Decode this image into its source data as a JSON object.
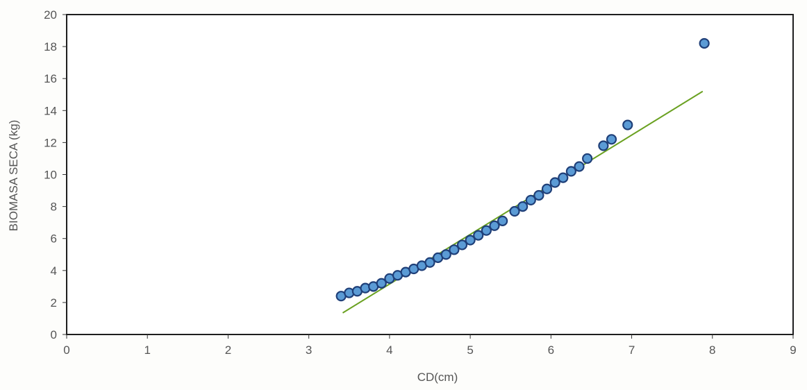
{
  "chart_data": {
    "type": "scatter",
    "title": "",
    "xlabel": "CD(cm)",
    "ylabel": "BIOMASA SECA (kg)",
    "xlim": [
      0,
      9
    ],
    "ylim": [
      0,
      20
    ],
    "x_ticks": [
      0,
      1,
      2,
      3,
      4,
      5,
      6,
      7,
      8,
      9
    ],
    "y_ticks": [
      0,
      2,
      4,
      6,
      8,
      10,
      12,
      14,
      16,
      18,
      20
    ],
    "grid": false,
    "legend": "none",
    "series": [
      {
        "type": "scatter",
        "color": "#5b9bd5",
        "points": [
          {
            "x": 3.4,
            "y": 2.4
          },
          {
            "x": 3.5,
            "y": 2.6
          },
          {
            "x": 3.6,
            "y": 2.7
          },
          {
            "x": 3.7,
            "y": 2.9
          },
          {
            "x": 3.8,
            "y": 3.0
          },
          {
            "x": 3.9,
            "y": 3.2
          },
          {
            "x": 4.0,
            "y": 3.5
          },
          {
            "x": 4.1,
            "y": 3.7
          },
          {
            "x": 4.2,
            "y": 3.9
          },
          {
            "x": 4.3,
            "y": 4.1
          },
          {
            "x": 4.4,
            "y": 4.3
          },
          {
            "x": 4.5,
            "y": 4.5
          },
          {
            "x": 4.6,
            "y": 4.8
          },
          {
            "x": 4.7,
            "y": 5.0
          },
          {
            "x": 4.8,
            "y": 5.3
          },
          {
            "x": 4.9,
            "y": 5.6
          },
          {
            "x": 5.0,
            "y": 5.9
          },
          {
            "x": 5.1,
            "y": 6.2
          },
          {
            "x": 5.2,
            "y": 6.5
          },
          {
            "x": 5.3,
            "y": 6.8
          },
          {
            "x": 5.4,
            "y": 7.1
          },
          {
            "x": 5.55,
            "y": 7.7
          },
          {
            "x": 5.65,
            "y": 8.0
          },
          {
            "x": 5.75,
            "y": 8.4
          },
          {
            "x": 5.85,
            "y": 8.7
          },
          {
            "x": 5.95,
            "y": 9.1
          },
          {
            "x": 6.05,
            "y": 9.5
          },
          {
            "x": 6.15,
            "y": 9.8
          },
          {
            "x": 6.25,
            "y": 10.2
          },
          {
            "x": 6.35,
            "y": 10.5
          },
          {
            "x": 6.45,
            "y": 11.0
          },
          {
            "x": 6.65,
            "y": 11.8
          },
          {
            "x": 6.75,
            "y": 12.2
          },
          {
            "x": 6.95,
            "y": 13.1
          },
          {
            "x": 7.9,
            "y": 18.2
          }
        ]
      },
      {
        "type": "line",
        "color": "#6aa121",
        "points": [
          {
            "x": 3.42,
            "y": 1.35
          },
          {
            "x": 7.88,
            "y": 15.2
          }
        ]
      }
    ]
  }
}
